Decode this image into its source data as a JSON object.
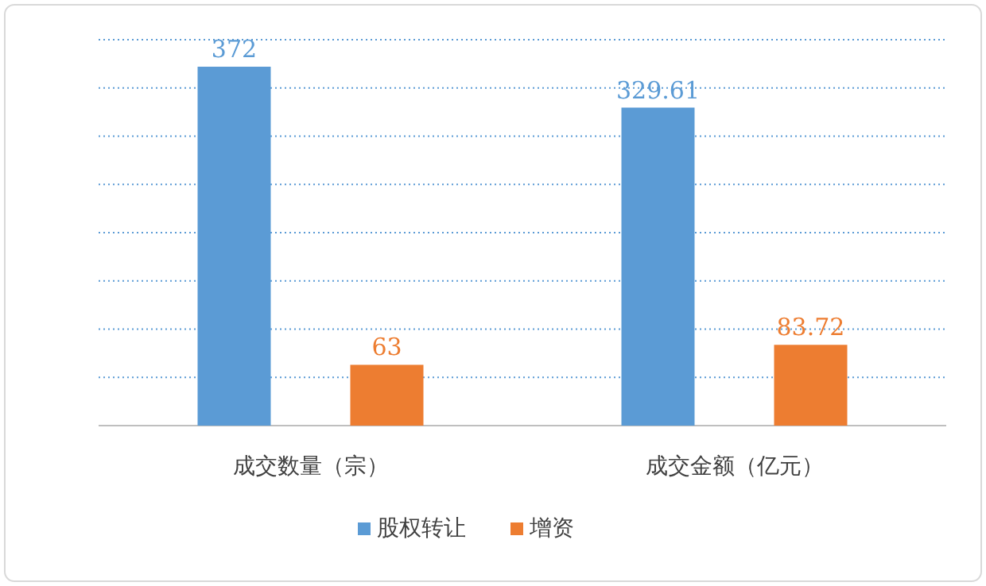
{
  "chart_data": {
    "type": "bar",
    "categories": [
      "成交数量（宗）",
      "成交金额（亿元）"
    ],
    "series": [
      {
        "name": "股权转让",
        "color": "#5b9bd5",
        "values": [
          372,
          329.61
        ],
        "value_labels": [
          "372",
          "329.61"
        ]
      },
      {
        "name": "增资",
        "color": "#ed7d31",
        "values": [
          63,
          83.72
        ],
        "value_labels": [
          "63",
          "83.72"
        ]
      }
    ],
    "ylim": [
      0,
      400
    ],
    "yticks": [
      {
        "value": 0,
        "label": null
      },
      {
        "value": 50,
        "label": null
      },
      {
        "value": 100,
        "label": null
      },
      {
        "value": 150,
        "label": null
      },
      {
        "value": 200,
        "label": null
      },
      {
        "value": 250,
        "label": null
      },
      {
        "value": 300,
        "label": null
      },
      {
        "value": 350,
        "label": null
      },
      {
        "value": 400,
        "label": null
      }
    ],
    "tick_labels": "x",
    "grid": "y",
    "legend": "bottom"
  }
}
